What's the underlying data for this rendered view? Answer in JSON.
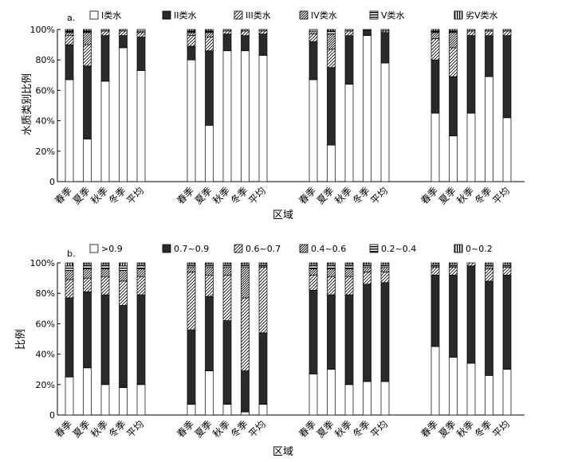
{
  "colors": {
    "stroke": "#000000",
    "dark": "#2a2a2a",
    "white": "#ffffff",
    "gray": "#7a7a7a"
  },
  "chart_data": [
    {
      "type": "bar",
      "stacked": true,
      "panel_label": "a.",
      "ylabel": "水质类别比例",
      "xlabel": "区域",
      "ylim": [
        0,
        100
      ],
      "yticks": [
        "0",
        "20%",
        "40%",
        "60%",
        "80%",
        "100%"
      ],
      "categories": [
        "春季",
        "夏季",
        "秋季",
        "冬季",
        "平均"
      ],
      "groups": 4,
      "legend": [
        "I类水",
        "II类水",
        "III类水",
        "IV类水",
        "V类水",
        "劣V类水"
      ],
      "legend_patterns": [
        "white",
        "dark",
        "diag",
        "diag2",
        "hstripe",
        "vstripe"
      ],
      "series_values": [
        [
          [
            67,
            23,
            6,
            2,
            1,
            1
          ],
          [
            28,
            48,
            14,
            8,
            1,
            1
          ],
          [
            66,
            30,
            3,
            1,
            0,
            0
          ],
          [
            88,
            8,
            3,
            1,
            0,
            0
          ],
          [
            73,
            22,
            3,
            1,
            1,
            0
          ]
        ],
        [
          [
            80,
            9,
            7,
            2,
            1,
            1
          ],
          [
            37,
            49,
            9,
            3,
            1,
            1
          ],
          [
            86,
            11,
            2,
            1,
            0,
            0
          ],
          [
            86,
            10,
            3,
            1,
            0,
            0
          ],
          [
            83,
            14,
            2,
            1,
            0,
            0
          ]
        ],
        [
          [
            67,
            25,
            5,
            2,
            1,
            0
          ],
          [
            24,
            51,
            12,
            10,
            2,
            1
          ],
          [
            64,
            32,
            3,
            1,
            0,
            0
          ],
          [
            96,
            4,
            0,
            0,
            0,
            0
          ],
          [
            78,
            20,
            1,
            1,
            0,
            0
          ]
        ],
        [
          [
            45,
            35,
            14,
            4,
            1,
            1
          ],
          [
            30,
            39,
            19,
            10,
            1,
            1
          ],
          [
            45,
            51,
            3,
            1,
            0,
            0
          ],
          [
            69,
            27,
            3,
            1,
            0,
            0
          ],
          [
            42,
            54,
            3,
            1,
            0,
            0
          ]
        ]
      ]
    },
    {
      "type": "bar",
      "stacked": true,
      "panel_label": "b.",
      "ylabel": "比例",
      "xlabel": "区域",
      "ylim": [
        0,
        100
      ],
      "yticks": [
        "0",
        "20%",
        "40%",
        "60%",
        "80%",
        "100%"
      ],
      "categories": [
        "春季",
        "夏季",
        "秋季",
        "冬季",
        "平均"
      ],
      "groups": 4,
      "legend": [
        ">0.9",
        "0.7~0.9",
        "0.6~0.7",
        "0.4~0.6",
        "0.2~0.4",
        "0~0.2"
      ],
      "legend_patterns": [
        "white",
        "dark",
        "diag",
        "diag2",
        "hstripe",
        "vstripe"
      ],
      "series_values": [
        [
          [
            25,
            52,
            12,
            6,
            3,
            2
          ],
          [
            31,
            50,
            9,
            6,
            3,
            1
          ],
          [
            20,
            59,
            12,
            5,
            3,
            1
          ],
          [
            18,
            54,
            16,
            7,
            3,
            2
          ],
          [
            20,
            59,
            12,
            5,
            3,
            1
          ]
        ],
        [
          [
            7,
            49,
            38,
            3,
            2,
            1
          ],
          [
            29,
            49,
            14,
            5,
            2,
            1
          ],
          [
            7,
            55,
            30,
            5,
            2,
            1
          ],
          [
            2,
            27,
            48,
            20,
            2,
            1
          ],
          [
            7,
            47,
            43,
            1,
            1,
            1
          ]
        ],
        [
          [
            27,
            55,
            10,
            4,
            3,
            1
          ],
          [
            30,
            49,
            12,
            5,
            3,
            1
          ],
          [
            20,
            59,
            12,
            5,
            3,
            1
          ],
          [
            22,
            64,
            8,
            3,
            2,
            1
          ],
          [
            22,
            65,
            7,
            3,
            2,
            1
          ]
        ],
        [
          [
            45,
            47,
            5,
            1,
            1,
            1
          ],
          [
            38,
            54,
            5,
            1,
            1,
            1
          ],
          [
            34,
            64,
            2,
            0,
            0,
            0
          ],
          [
            26,
            62,
            8,
            2,
            1,
            1
          ],
          [
            30,
            62,
            5,
            1,
            1,
            1
          ]
        ]
      ]
    }
  ]
}
